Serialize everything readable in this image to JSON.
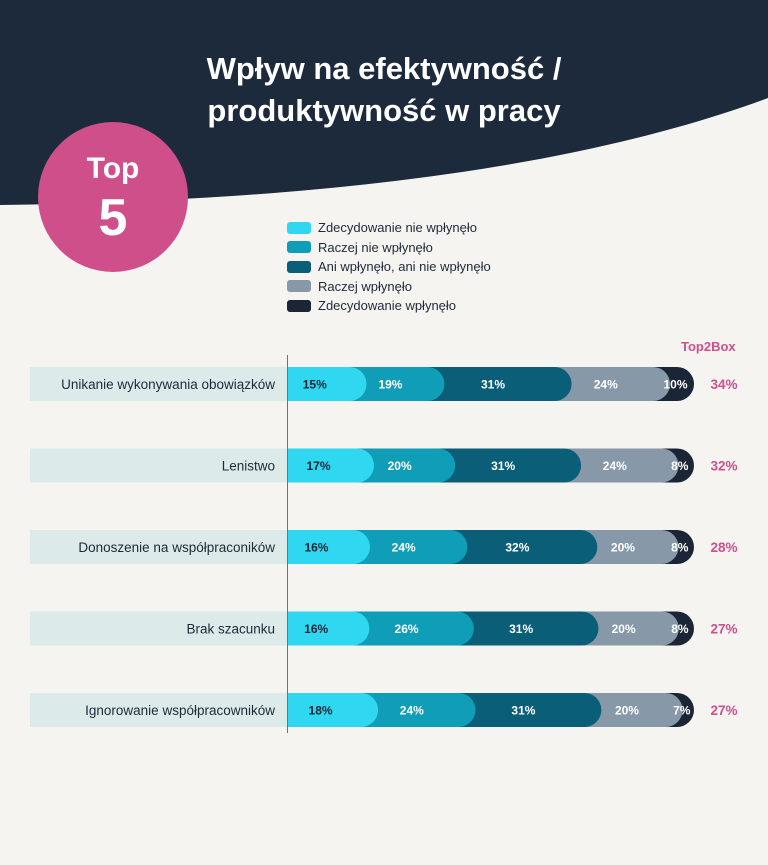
{
  "title": {
    "line1": "Wpływ na efektywność /",
    "line2": "produktywność w pracy"
  },
  "badge": {
    "top": "Top",
    "number": "5"
  },
  "colors": {
    "header": "#1d2a3c",
    "accent": "#cf4f8b",
    "row_label_bg": "#dceae9",
    "series": [
      "#2fd8f0",
      "#0f9db7",
      "#0a5e78",
      "#8799a8",
      "#1b2536"
    ]
  },
  "top2box_label": "Top2Box",
  "chart_data": {
    "type": "bar",
    "orientation": "horizontal",
    "stacked": true,
    "title": "Wpływ na efektywność / produktywność w pracy",
    "categories": [
      "Unikanie wykonywania obowiązków",
      "Lenistwo",
      "Donoszenie na współpraconików",
      "Brak szacunku",
      "Ignorowanie współpracowników"
    ],
    "series": [
      {
        "name": "Zdecydowanie nie wpłynęło",
        "values": [
          15,
          17,
          16,
          16,
          18
        ]
      },
      {
        "name": "Raczej nie wpłynęło",
        "values": [
          19,
          20,
          24,
          26,
          24
        ]
      },
      {
        "name": "Ani wpłynęło, ani nie wpłynęło",
        "values": [
          31,
          31,
          32,
          31,
          31
        ]
      },
      {
        "name": "Raczej wpłynęło",
        "values": [
          24,
          24,
          20,
          20,
          20
        ]
      },
      {
        "name": "Zdecydowanie wpłynęło",
        "values": [
          10,
          8,
          8,
          8,
          7
        ]
      }
    ],
    "top2box": [
      34,
      32,
      28,
      27,
      27
    ],
    "unit": "%",
    "legend_position": "top"
  }
}
